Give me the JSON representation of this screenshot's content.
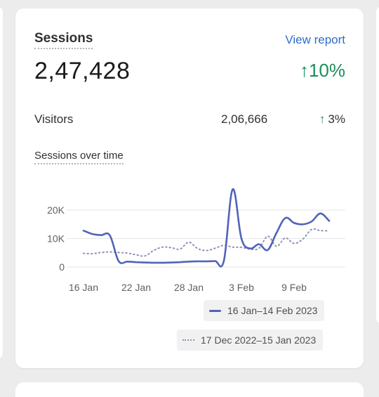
{
  "card": {
    "title": "Sessions",
    "view_report_label": "View report",
    "total": "2,47,428",
    "total_change": "10%",
    "visitors_label": "Visitors",
    "visitors_value": "2,06,666",
    "visitors_change": "3%",
    "chart_title": "Sessions over time"
  },
  "colors": {
    "current_series": "#5163b8",
    "previous_series": "#8a94b8",
    "positive_change": "#1b8e5b",
    "link": "#2c6ecb"
  },
  "icons": {
    "change_arrow": "arrow-up-icon"
  },
  "chart_data": {
    "type": "line",
    "ylim": [
      0,
      30000
    ],
    "yticks": [
      "0",
      "10K",
      "20K"
    ],
    "ytick_values": [
      0,
      10000,
      20000
    ],
    "xticks": [
      "16 Jan",
      "22 Jan",
      "28 Jan",
      "3 Feb",
      "9 Feb"
    ],
    "xtick_index": [
      0,
      6,
      12,
      18,
      24
    ],
    "grid": true,
    "legend_position": "bottom-right",
    "series": [
      {
        "name": "16 Jan–14 Feb 2023",
        "style": "solid",
        "values": [
          12800,
          11600,
          11200,
          11100,
          2100,
          1900,
          1700,
          1600,
          1500,
          1500,
          1600,
          1700,
          1900,
          2000,
          2000,
          2100,
          2200,
          27300,
          10000,
          6500,
          8000,
          6000,
          12000,
          17200,
          15500,
          15000,
          16000,
          18800,
          16200
        ]
      },
      {
        "name": "17 Dec 2022–15 Jan 2023",
        "style": "dotted",
        "values": [
          4800,
          4700,
          5100,
          5300,
          5100,
          4900,
          4300,
          3900,
          5800,
          7000,
          6800,
          6300,
          8700,
          6500,
          5800,
          6600,
          7600,
          7000,
          6900,
          6300,
          6600,
          10800,
          7300,
          10200,
          8300,
          9800,
          13200,
          12800,
          12700
        ]
      }
    ]
  }
}
